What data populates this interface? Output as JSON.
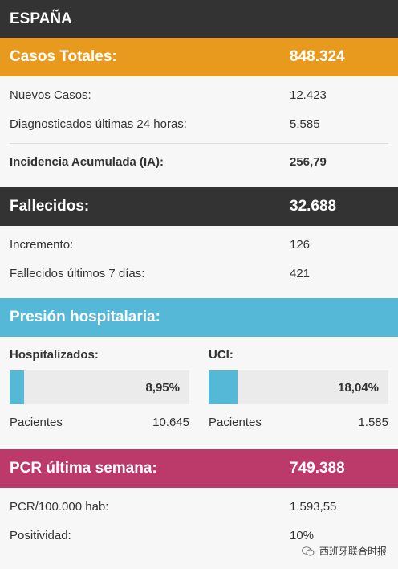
{
  "header": {
    "title": "ESPAÑA"
  },
  "casos": {
    "label": "Casos Totales:",
    "value": "848.324",
    "rows": [
      {
        "label": "Nuevos Casos:",
        "value": "12.423"
      },
      {
        "label": "Diagnosticados últimas 24 horas:",
        "value": "5.585"
      }
    ],
    "incidencia": {
      "label": "Incidencia Acumulada (IA):",
      "value": "256,79"
    }
  },
  "fallecidos": {
    "label": "Fallecidos:",
    "value": "32.688",
    "rows": [
      {
        "label": "Incremento:",
        "value": "126"
      },
      {
        "label": "Fallecidos últimos 7 días:",
        "value": "421"
      }
    ]
  },
  "presion": {
    "label": "Presión hospitalaria:",
    "hospitalizados": {
      "title": "Hospitalizados:",
      "percent_text": "8,95%",
      "percent": 8.95,
      "pacientes_label": "Pacientes",
      "pacientes_value": "10.645"
    },
    "uci": {
      "title": "UCI:",
      "percent_text": "18,04%",
      "percent": 18.04,
      "pacientes_label": "Pacientes",
      "pacientes_value": "1.585"
    }
  },
  "pcr": {
    "label": "PCR última semana:",
    "value": "749.388",
    "rows": [
      {
        "label": "PCR/100.000 hab:",
        "value": "1.593,55"
      },
      {
        "label": "Positividad:",
        "value": "10%"
      }
    ]
  },
  "watermark": {
    "text": "西班牙联合时报",
    "icon": "wechat-icon"
  },
  "colors": {
    "orange": "#e89a1f",
    "dark": "#333333",
    "cyan": "#54b8d6",
    "pink": "#bc3a6a"
  }
}
